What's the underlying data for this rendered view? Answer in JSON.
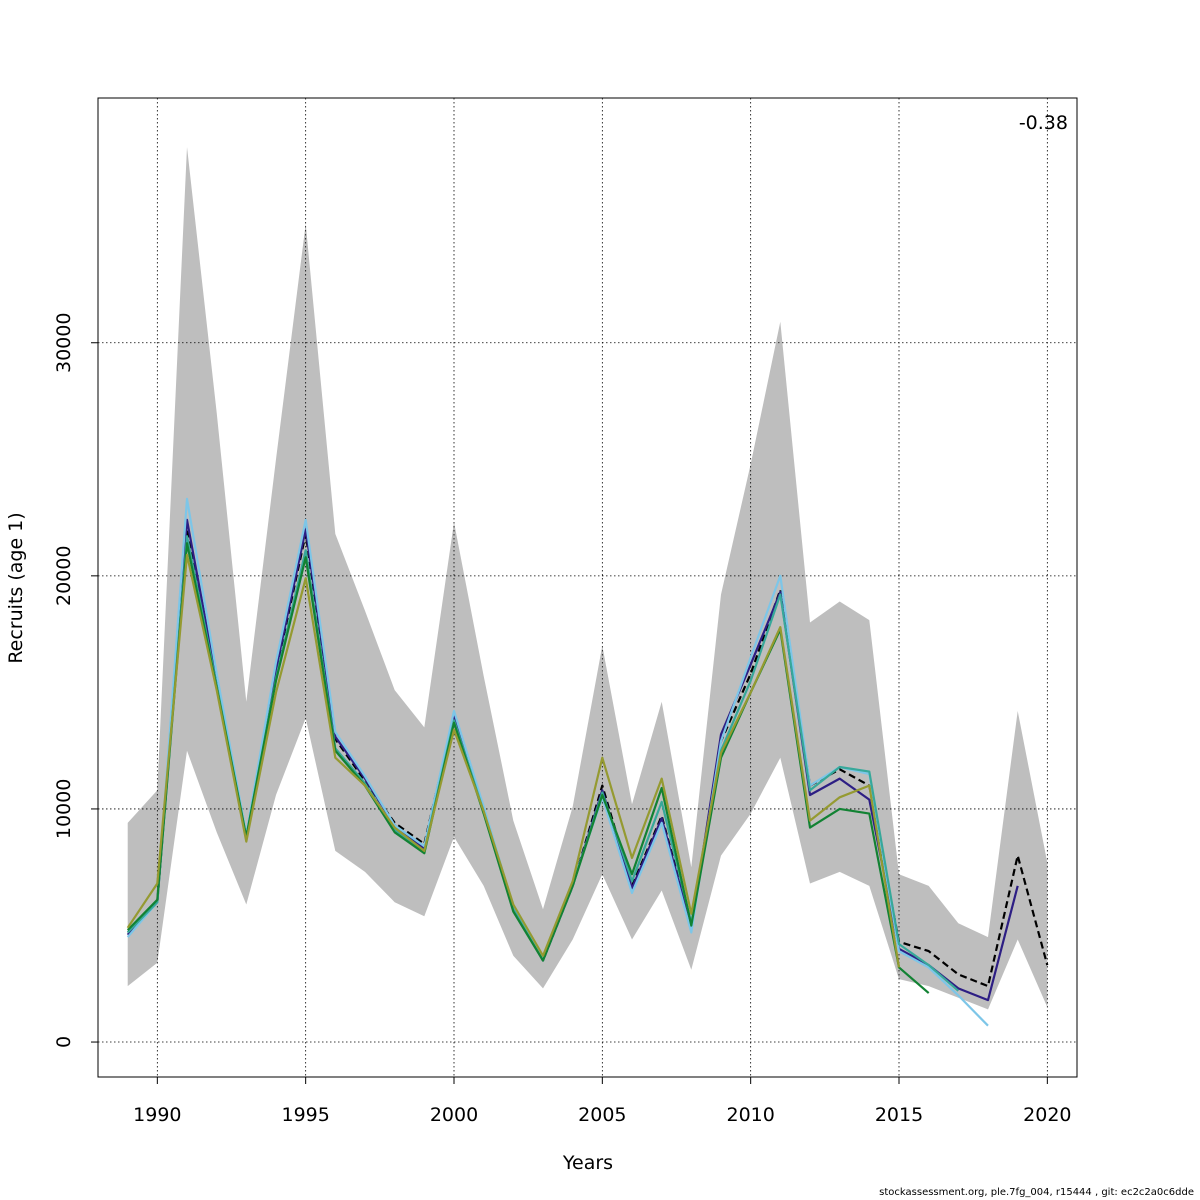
{
  "footer": "stockassessment.org, ple.7fg_004, r15444 , git: ec2c2a0c6dde",
  "chart_data": {
    "type": "line",
    "title": "",
    "xlabel": "Years",
    "ylabel": "Recruits (age 1)",
    "annotation": "-0.38",
    "xlim": [
      1988,
      2021
    ],
    "ylim": [
      -1500,
      40500
    ],
    "x_ticks": [
      1990,
      1995,
      2000,
      2005,
      2010,
      2015,
      2020
    ],
    "y_ticks": [
      0,
      10000,
      20000,
      30000
    ],
    "grid": true,
    "legend": "none",
    "confidence_band": {
      "x": [
        1989,
        1990,
        1991,
        1992,
        1993,
        1994,
        1995,
        1996,
        1997,
        1998,
        1999,
        2000,
        2001,
        2002,
        2003,
        2004,
        2005,
        2006,
        2007,
        2008,
        2009,
        2010,
        2011,
        2012,
        2013,
        2014,
        2015,
        2016,
        2017,
        2018,
        2019,
        2020
      ],
      "lower": [
        2400,
        3400,
        12500,
        9000,
        5900,
        10600,
        13900,
        8200,
        7300,
        6000,
        5400,
        8800,
        6700,
        3700,
        2300,
        4400,
        7200,
        4400,
        6500,
        3100,
        8000,
        9800,
        12200,
        6800,
        7300,
        6700,
        2700,
        2400,
        1900,
        1400,
        4400,
        1500
      ],
      "upper": [
        9400,
        10800,
        38400,
        27000,
        14600,
        25000,
        35100,
        21800,
        18500,
        15100,
        13500,
        22300,
        15700,
        9500,
        5700,
        10100,
        17000,
        10200,
        14600,
        7500,
        19200,
        24800,
        30900,
        18000,
        18900,
        18100,
        7200,
        6700,
        5100,
        4500,
        14200,
        7700
      ],
      "color": "#bebebe"
    },
    "series": [
      {
        "color": "#000000",
        "dashed": true,
        "x": [
          1989,
          1990,
          1991,
          1992,
          1993,
          1994,
          1995,
          1996,
          1997,
          1998,
          1999,
          2000,
          2001,
          2002,
          2003,
          2004,
          2005,
          2006,
          2007,
          2008,
          2009,
          2010,
          2011,
          2012,
          2013,
          2014,
          2015,
          2016,
          2017,
          2018,
          2019,
          2020
        ],
        "values": [
          4700,
          6000,
          22000,
          15500,
          8800,
          15900,
          21800,
          13000,
          11200,
          9400,
          8500,
          14000,
          10000,
          5800,
          3500,
          6700,
          11000,
          6700,
          9700,
          5000,
          12900,
          15800,
          19400,
          11000,
          11700,
          11000,
          4300,
          3900,
          2900,
          2400,
          8000,
          3300
        ]
      },
      {
        "color": "#2d1e84",
        "dashed": false,
        "x": [
          1989,
          1990,
          1991,
          1992,
          1993,
          1994,
          1995,
          1996,
          1997,
          1998,
          1999,
          2000,
          2001,
          2002,
          2003,
          2004,
          2005,
          2006,
          2007,
          2008,
          2009,
          2010,
          2011,
          2012,
          2013,
          2014,
          2015,
          2016,
          2017,
          2018,
          2019
        ],
        "values": [
          4600,
          6000,
          22400,
          15500,
          8800,
          16000,
          22000,
          13100,
          11300,
          9300,
          8300,
          14000,
          10000,
          5700,
          3500,
          6700,
          10800,
          6600,
          9600,
          4900,
          13200,
          16200,
          19300,
          10600,
          11300,
          10400,
          4000,
          3300,
          2300,
          1800,
          6700
        ]
      },
      {
        "color": "#7dc6e8",
        "dashed": false,
        "x": [
          1989,
          1990,
          1991,
          1992,
          1993,
          1994,
          1995,
          1996,
          1997,
          1998,
          1999,
          2000,
          2001,
          2002,
          2003,
          2004,
          2005,
          2006,
          2007,
          2008,
          2009,
          2010,
          2011,
          2012,
          2013,
          2014,
          2015,
          2016,
          2017,
          2018
        ],
        "values": [
          4500,
          6000,
          23300,
          15800,
          8900,
          16300,
          22400,
          13300,
          11400,
          9300,
          8400,
          14200,
          10100,
          5800,
          3600,
          6800,
          10500,
          6400,
          9400,
          4700,
          12900,
          16500,
          20000,
          11000,
          11800,
          11500,
          3900,
          3200,
          2000,
          700
        ]
      },
      {
        "color": "#37a89a",
        "dashed": false,
        "x": [
          1989,
          1990,
          1991,
          1992,
          1993,
          1994,
          1995,
          1996,
          1997,
          1998,
          1999,
          2000,
          2001,
          2002,
          2003,
          2004,
          2005,
          2006,
          2007,
          2008,
          2009,
          2010,
          2011,
          2012,
          2013,
          2014,
          2015,
          2016,
          2017
        ],
        "values": [
          4700,
          6000,
          21700,
          15300,
          8800,
          15600,
          21100,
          12600,
          11100,
          9100,
          8200,
          13800,
          9900,
          5700,
          3500,
          6700,
          10700,
          6900,
          10300,
          5100,
          12500,
          15500,
          19200,
          10800,
          11800,
          11600,
          4200,
          3300,
          2200
        ]
      },
      {
        "color": "#128233",
        "dashed": false,
        "x": [
          1989,
          1990,
          1991,
          1992,
          1993,
          1994,
          1995,
          1996,
          1997,
          1998,
          1999,
          2000,
          2001,
          2002,
          2003,
          2004,
          2005,
          2006,
          2007,
          2008,
          2009,
          2010,
          2011,
          2012,
          2013,
          2014,
          2015,
          2016
        ],
        "values": [
          4800,
          6100,
          21400,
          15200,
          8800,
          15500,
          20800,
          12500,
          11000,
          9000,
          8100,
          13700,
          9800,
          5600,
          3500,
          6700,
          10600,
          7200,
          10900,
          5000,
          12200,
          15000,
          17700,
          9200,
          10000,
          9800,
          3200,
          2100
        ]
      },
      {
        "color": "#959a31",
        "dashed": false,
        "x": [
          1989,
          1990,
          1991,
          1992,
          1993,
          1994,
          1995,
          1996,
          1997,
          1998,
          1999,
          2000,
          2001,
          2002,
          2003,
          2004,
          2005,
          2006,
          2007,
          2008,
          2009,
          2010,
          2011,
          2012,
          2013,
          2014,
          2015
        ],
        "values": [
          4900,
          6800,
          20900,
          15100,
          8600,
          15000,
          19900,
          12200,
          11000,
          9200,
          8200,
          13400,
          9900,
          5900,
          3700,
          6900,
          12200,
          7900,
          11300,
          5500,
          12400,
          15000,
          17800,
          9500,
          10500,
          11000,
          3200
        ]
      }
    ]
  }
}
